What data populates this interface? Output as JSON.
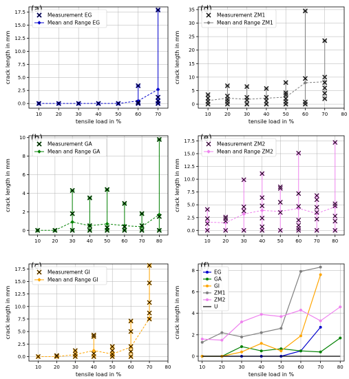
{
  "figure": {
    "xlabel": "tensile load in %",
    "ylabel": "crack length in mm"
  },
  "chart_data": [
    {
      "panel": "(a)",
      "type": "scatter",
      "xlabel": "tensile load in %",
      "ylabel": "crack length in mm",
      "xlim": [
        5,
        75
      ],
      "ylim": [
        -0.9,
        18.5
      ],
      "xticks": [
        10,
        20,
        30,
        40,
        50,
        60,
        70
      ],
      "yticks": [
        0.0,
        2.5,
        5.0,
        7.5,
        10.0,
        12.5,
        15.0,
        17.5
      ],
      "ytick_labels": [
        "0.0",
        "2.5",
        "5.0",
        "7.5",
        "10.0",
        "12.5",
        "15.0",
        "17.5"
      ],
      "color": "#0000cc",
      "legend": [
        "Measurement EG",
        "Mean and Range EG"
      ],
      "legend_position": "top-left",
      "measurements": [
        [
          10,
          0
        ],
        [
          20,
          0
        ],
        [
          30,
          0
        ],
        [
          40,
          0
        ],
        [
          50,
          0
        ],
        [
          60,
          0
        ],
        [
          60,
          0.2
        ],
        [
          60,
          3.4
        ],
        [
          70,
          0
        ],
        [
          70,
          0.5
        ],
        [
          70,
          1.2
        ],
        [
          70,
          17.9
        ]
      ],
      "mean": {
        "x": [
          10,
          20,
          30,
          40,
          50,
          60,
          70
        ],
        "y": [
          0,
          0,
          0,
          0,
          0,
          0.5,
          2.7
        ]
      },
      "range": [
        [
          60,
          0,
          3.4
        ],
        [
          70,
          0,
          17.9
        ]
      ]
    },
    {
      "panel": "(d)",
      "type": "scatter",
      "xlabel": "tensile load in %",
      "ylabel": "crack length in mm",
      "xlim": [
        5,
        80
      ],
      "ylim": [
        -1.5,
        36
      ],
      "xticks": [
        10,
        20,
        30,
        40,
        50,
        60,
        70,
        80
      ],
      "yticks": [
        0,
        5,
        10,
        15,
        20,
        25,
        30,
        35
      ],
      "ytick_labels": [
        "0",
        "5",
        "10",
        "15",
        "20",
        "25",
        "30",
        "35"
      ],
      "color": "#7f7f7f",
      "legend": [
        "Measurement ZM1",
        "Mean and Range ZM1"
      ],
      "legend_position": "top-left",
      "measurements": [
        [
          10,
          0
        ],
        [
          10,
          1
        ],
        [
          10,
          2.2
        ],
        [
          10,
          3.5
        ],
        [
          20,
          0
        ],
        [
          20,
          1
        ],
        [
          20,
          1.8
        ],
        [
          20,
          3
        ],
        [
          20,
          6.8
        ],
        [
          30,
          0
        ],
        [
          30,
          1.5
        ],
        [
          30,
          2.5
        ],
        [
          30,
          6.5
        ],
        [
          40,
          0
        ],
        [
          40,
          1.2
        ],
        [
          40,
          2.5
        ],
        [
          40,
          5.8
        ],
        [
          50,
          0
        ],
        [
          50,
          1
        ],
        [
          50,
          2
        ],
        [
          50,
          3.5
        ],
        [
          50,
          4.2
        ],
        [
          50,
          8
        ],
        [
          60,
          0
        ],
        [
          60,
          0.8
        ],
        [
          60,
          9.5
        ],
        [
          60,
          34.5
        ],
        [
          70,
          2
        ],
        [
          70,
          4
        ],
        [
          70,
          6
        ],
        [
          70,
          8
        ],
        [
          70,
          10
        ],
        [
          70,
          23.5
        ]
      ],
      "mean": {
        "x": [
          10,
          20,
          30,
          40,
          50,
          60,
          70
        ],
        "y": [
          1.3,
          2.2,
          1.8,
          2.2,
          2.6,
          7.9,
          8.3
        ]
      },
      "range": [
        [
          10,
          0,
          3.5
        ],
        [
          20,
          0,
          6.8
        ],
        [
          30,
          0,
          6.5
        ],
        [
          40,
          0,
          5.8
        ],
        [
          50,
          0,
          8
        ],
        [
          60,
          0,
          34.5
        ],
        [
          70,
          2,
          23.5
        ]
      ]
    },
    {
      "panel": "(b)",
      "type": "scatter",
      "xlabel": "",
      "ylabel": "crack length in mm",
      "xlim": [
        5,
        85
      ],
      "ylim": [
        -0.5,
        10.2
      ],
      "xticks": [
        10,
        20,
        30,
        40,
        50,
        60,
        70,
        80
      ],
      "yticks": [
        0,
        2,
        4,
        6,
        8,
        10
      ],
      "ytick_labels": [
        "0",
        "2",
        "4",
        "6",
        "8",
        "10"
      ],
      "color": "#008000",
      "legend": [
        "Measurement GA",
        "Mean and Range GA"
      ],
      "legend_position": "top-left",
      "measurements": [
        [
          10,
          0
        ],
        [
          20,
          0
        ],
        [
          30,
          0
        ],
        [
          30,
          1.8
        ],
        [
          30,
          4.3
        ],
        [
          40,
          0
        ],
        [
          40,
          0.5
        ],
        [
          40,
          3.5
        ],
        [
          50,
          0
        ],
        [
          50,
          0.3
        ],
        [
          50,
          4.4
        ],
        [
          60,
          0
        ],
        [
          60,
          0.4
        ],
        [
          60,
          2.9
        ],
        [
          70,
          0
        ],
        [
          70,
          0.5
        ],
        [
          70,
          1.8
        ],
        [
          80,
          0
        ],
        [
          80,
          1.5
        ],
        [
          80,
          9.8
        ]
      ],
      "mean": {
        "x": [
          10,
          20,
          30,
          40,
          50,
          60,
          70,
          80
        ],
        "y": [
          0,
          0,
          0.9,
          0.5,
          0.7,
          0.5,
          0.4,
          1.7
        ]
      },
      "range": [
        [
          30,
          0,
          4.3
        ],
        [
          40,
          0,
          3.5
        ],
        [
          50,
          0,
          4.4
        ],
        [
          60,
          0,
          2.9
        ],
        [
          70,
          0,
          1.8
        ],
        [
          80,
          0,
          9.8
        ]
      ]
    },
    {
      "panel": "(e)",
      "type": "scatter",
      "xlabel": "",
      "ylabel": "crack length in mm",
      "xlim": [
        5,
        85
      ],
      "ylim": [
        -0.9,
        18.5
      ],
      "xticks": [
        10,
        20,
        30,
        40,
        50,
        60,
        70,
        80
      ],
      "yticks": [
        0.0,
        2.5,
        5.0,
        7.5,
        10.0,
        12.5,
        15.0,
        17.5
      ],
      "ytick_labels": [
        "0.0",
        "2.5",
        "5.0",
        "7.5",
        "10.0",
        "12.5",
        "15.0",
        "17.5"
      ],
      "color": "#ee82ee",
      "legend": [
        "Measurement ZM2",
        "Mean and Range ZM2"
      ],
      "legend_position": "top-left",
      "measurements": [
        [
          10,
          0
        ],
        [
          10,
          1.3
        ],
        [
          10,
          2.3
        ],
        [
          10,
          4.1
        ],
        [
          20,
          0
        ],
        [
          20,
          1.8
        ],
        [
          20,
          2.3
        ],
        [
          20,
          2.6
        ],
        [
          30,
          0
        ],
        [
          30,
          3.8
        ],
        [
          30,
          4.6
        ],
        [
          30,
          9.9
        ],
        [
          40,
          0
        ],
        [
          40,
          0.7
        ],
        [
          40,
          2.4
        ],
        [
          40,
          4.8
        ],
        [
          40,
          6.4
        ],
        [
          40,
          11.1
        ],
        [
          50,
          0
        ],
        [
          50,
          3.5
        ],
        [
          50,
          5.5
        ],
        [
          50,
          8.2
        ],
        [
          50,
          8.5
        ],
        [
          60,
          0
        ],
        [
          60,
          0.4
        ],
        [
          60,
          1
        ],
        [
          60,
          2
        ],
        [
          60,
          4.7
        ],
        [
          60,
          7.2
        ],
        [
          60,
          15.1
        ],
        [
          70,
          0
        ],
        [
          70,
          2.2
        ],
        [
          70,
          3.5
        ],
        [
          70,
          4.5
        ],
        [
          70,
          6
        ],
        [
          70,
          6.8
        ],
        [
          80,
          0
        ],
        [
          80,
          1.8
        ],
        [
          80,
          2.8
        ],
        [
          80,
          4.8
        ],
        [
          80,
          5.2
        ],
        [
          80,
          17.2
        ]
      ],
      "mean": {
        "x": [
          10,
          20,
          30,
          40,
          50,
          60,
          70,
          80
        ],
        "y": [
          1.6,
          1.5,
          3.2,
          3.9,
          3.7,
          4.3,
          3.3,
          4.6
        ]
      },
      "range": [
        [
          10,
          0,
          4.1
        ],
        [
          20,
          0,
          2.6
        ],
        [
          30,
          0,
          9.9
        ],
        [
          40,
          0,
          11.1
        ],
        [
          50,
          0,
          8.5
        ],
        [
          60,
          0,
          15.1
        ],
        [
          70,
          0,
          6.8
        ],
        [
          80,
          0,
          17.2
        ]
      ]
    },
    {
      "panel": "(c)",
      "type": "scatter",
      "xlabel": "tensile load in %",
      "ylabel": "crack length in mm",
      "xlim": [
        5,
        80
      ],
      "ylim": [
        -0.9,
        18.5
      ],
      "xticks": [
        10,
        20,
        30,
        40,
        50,
        60,
        70,
        80
      ],
      "yticks": [
        0.0,
        2.5,
        5.0,
        7.5,
        10.0,
        12.5,
        15.0,
        17.5
      ],
      "ytick_labels": [
        "0.0",
        "2.5",
        "5.0",
        "7.5",
        "10.0",
        "12.5",
        "15.0",
        "17.5"
      ],
      "color": "#ffa500",
      "legend": [
        "Measurement GI",
        "Mean and Range GI"
      ],
      "legend_position": "top-left",
      "measurements": [
        [
          10,
          0
        ],
        [
          20,
          0
        ],
        [
          20,
          0.2
        ],
        [
          30,
          0
        ],
        [
          30,
          0.5
        ],
        [
          30,
          1.2
        ],
        [
          40,
          0
        ],
        [
          40,
          0.6
        ],
        [
          40,
          4
        ],
        [
          40,
          4.3
        ],
        [
          50,
          0
        ],
        [
          50,
          0.5
        ],
        [
          50,
          1.2
        ],
        [
          50,
          2
        ],
        [
          60,
          0
        ],
        [
          60,
          1
        ],
        [
          60,
          2
        ],
        [
          60,
          5
        ],
        [
          60,
          7.1
        ],
        [
          70,
          7.5
        ],
        [
          70,
          8.7
        ],
        [
          70,
          10.8
        ],
        [
          70,
          14.7
        ],
        [
          70,
          18.2
        ]
      ],
      "mean": {
        "x": [
          10,
          20,
          30,
          40,
          50,
          60,
          70
        ],
        "y": [
          0,
          0,
          0.4,
          1.2,
          0.5,
          1.9,
          7.6
        ]
      },
      "range": [
        [
          20,
          0,
          0.2
        ],
        [
          30,
          0,
          1.2
        ],
        [
          40,
          0,
          4.3
        ],
        [
          50,
          0,
          2
        ],
        [
          60,
          0,
          7.1
        ],
        [
          70,
          7.5,
          18.2
        ]
      ]
    },
    {
      "panel": "(f)",
      "type": "line",
      "xlabel": "tensile load in %",
      "ylabel": "crack length in mm",
      "xlim": [
        8,
        82
      ],
      "ylim": [
        -0.45,
        8.6
      ],
      "xticks": [
        10,
        20,
        30,
        40,
        50,
        60,
        70,
        80
      ],
      "yticks": [
        0,
        2,
        4,
        6,
        8
      ],
      "ytick_labels": [
        "0",
        "2",
        "4",
        "6",
        "8"
      ],
      "legend_position": "top-left",
      "series": [
        {
          "name": "EG",
          "color": "#0000cc",
          "x": [
            10,
            20,
            30,
            40,
            50,
            60,
            70
          ],
          "y": [
            0,
            0,
            0,
            0,
            0,
            0.5,
            2.7
          ]
        },
        {
          "name": "GA",
          "color": "#008000",
          "x": [
            10,
            20,
            30,
            40,
            50,
            60,
            70,
            80
          ],
          "y": [
            0,
            0,
            0.9,
            0.5,
            0.7,
            0.5,
            0.4,
            1.7
          ]
        },
        {
          "name": "GI",
          "color": "#ffa500",
          "x": [
            10,
            20,
            30,
            40,
            50,
            60,
            70
          ],
          "y": [
            0,
            0,
            0.4,
            1.2,
            0.5,
            1.9,
            7.6
          ]
        },
        {
          "name": "ZM1",
          "color": "#7f7f7f",
          "x": [
            10,
            20,
            30,
            40,
            50,
            60,
            70
          ],
          "y": [
            1.3,
            2.2,
            1.8,
            2.2,
            2.6,
            7.9,
            8.3
          ]
        },
        {
          "name": "ZM2",
          "color": "#ee82ee",
          "x": [
            10,
            20,
            30,
            40,
            50,
            60,
            70,
            80
          ],
          "y": [
            1.6,
            1.5,
            3.2,
            3.9,
            3.7,
            4.3,
            3.3,
            4.6
          ]
        },
        {
          "name": "U",
          "color": "#000000",
          "x": [
            10,
            20,
            30,
            40,
            50,
            60,
            70,
            80
          ],
          "y": [
            0,
            0,
            0,
            0,
            0,
            0,
            0,
            0
          ]
        }
      ]
    }
  ]
}
